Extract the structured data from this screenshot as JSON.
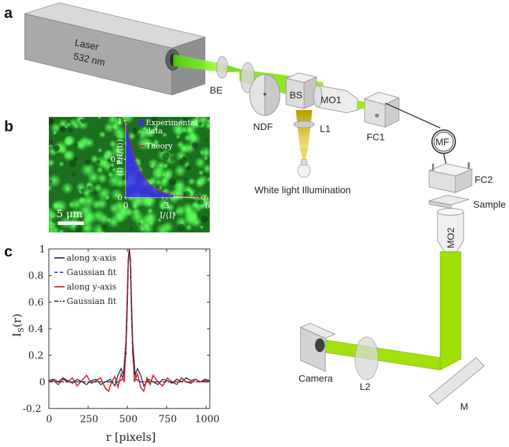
{
  "panels": {
    "a": {
      "label": "a"
    },
    "b": {
      "label": "b"
    },
    "c": {
      "label": "c"
    }
  },
  "setup": {
    "laser_label": "Laser",
    "laser_wavelength": "532 nm",
    "components": {
      "be": "BE",
      "ndf": "NDF",
      "bs": "BS",
      "mo1": "MO1",
      "l1": "L1",
      "fc1": "FC1",
      "mf": "MF",
      "fc2": "FC2",
      "sample": "Sample",
      "mo2": "MO2",
      "camera": "Camera",
      "l2": "L2",
      "m": "M"
    },
    "illumination": "White light Illumination",
    "colors": {
      "beam": "#7fe000",
      "beam_dark": "#4fb800",
      "lamp": "#c9b400"
    }
  },
  "speckle_image": {
    "scalebar_label": "5 μm",
    "scalebar_um": 5,
    "colors": {
      "background": "#1f7a1f",
      "speckle": "#39e639",
      "dark": "#0e3d10"
    }
  },
  "chart_data": [
    {
      "panel": "b-inset",
      "type": "bar",
      "xlabel": "I/⟨I⟩",
      "ylabel": "⟨I⟩ P(I/⟨I⟩)",
      "xlim": [
        0,
        6
      ],
      "ylim": [
        0,
        1
      ],
      "x_ticks": [
        "0",
        "3",
        "6"
      ],
      "y_ticks": [
        "0",
        "0.5",
        "1"
      ],
      "legend": [
        "Experimental data",
        "Theory"
      ],
      "legend_colors": [
        "#3a2cff",
        "#e02020"
      ],
      "series": [
        {
          "name": "Experimental data",
          "kind": "histogram",
          "x": [
            0.05,
            0.15,
            0.25,
            0.35,
            0.45,
            0.55,
            0.65,
            0.75,
            0.85,
            0.95,
            1.05,
            1.15,
            1.25,
            1.35,
            1.45,
            1.55,
            1.65,
            1.75,
            1.85,
            1.95,
            2.05,
            2.15,
            2.25,
            2.35,
            2.45,
            2.55,
            2.65,
            2.75,
            2.85,
            2.95,
            3.05,
            3.15,
            3.25,
            3.35,
            3.45
          ],
          "values": [
            0.95,
            0.86,
            0.78,
            0.71,
            0.64,
            0.58,
            0.52,
            0.47,
            0.43,
            0.39,
            0.35,
            0.32,
            0.29,
            0.26,
            0.23,
            0.21,
            0.19,
            0.17,
            0.16,
            0.14,
            0.13,
            0.12,
            0.1,
            0.09,
            0.09,
            0.08,
            0.07,
            0.06,
            0.06,
            0.05,
            0.05,
            0.04,
            0.04,
            0.03,
            0.03
          ]
        },
        {
          "name": "Theory",
          "kind": "line",
          "x": [
            0,
            0.25,
            0.5,
            0.75,
            1,
            1.25,
            1.5,
            1.75,
            2,
            2.5,
            3,
            3.5,
            4,
            4.5,
            5,
            5.5,
            6
          ],
          "values": [
            1,
            0.78,
            0.61,
            0.47,
            0.37,
            0.29,
            0.22,
            0.17,
            0.14,
            0.08,
            0.05,
            0.03,
            0.02,
            0.01,
            0.01,
            0,
            0
          ]
        }
      ]
    },
    {
      "panel": "c",
      "type": "line",
      "xlabel": "r [pixels]",
      "ylabel": "I_S(r)",
      "xlim": [
        0,
        1024
      ],
      "ylim": [
        -0.2,
        1
      ],
      "x_ticks": [
        "0",
        "250",
        "500",
        "750",
        "1000"
      ],
      "y_ticks": [
        "-0.2",
        "0",
        "0.2",
        "0.4",
        "0.6",
        "0.8",
        "1"
      ],
      "grid": false,
      "legend_position": "top-left",
      "series": [
        {
          "name": "along x-axis",
          "color": "#1b2a4a",
          "style": "solid",
          "x": [
            0,
            30,
            60,
            90,
            120,
            150,
            180,
            210,
            240,
            270,
            300,
            330,
            360,
            390,
            420,
            440,
            460,
            475,
            490,
            500,
            505,
            512,
            519,
            524,
            534,
            549,
            564,
            584,
            604,
            634,
            664,
            694,
            724,
            754,
            784,
            814,
            844,
            874,
            904,
            934,
            964,
            994,
            1024
          ],
          "values": [
            0.01,
            0.02,
            0.0,
            0.03,
            0.01,
            -0.01,
            0.02,
            0.0,
            -0.02,
            0.01,
            0.02,
            -0.02,
            0.0,
            0.02,
            -0.03,
            0.05,
            0.1,
            0.05,
            0.3,
            0.7,
            0.93,
            1.0,
            0.93,
            0.7,
            0.3,
            0.05,
            0.1,
            0.05,
            -0.03,
            0.02,
            0.0,
            -0.02,
            0.02,
            0.01,
            -0.01,
            0.02,
            0.0,
            0.03,
            0.01,
            0.02,
            0.0,
            0.02,
            0.01
          ]
        },
        {
          "name": "Gaussian fit",
          "color": "#2a3cff",
          "style": "dashed",
          "x": [
            0,
            440,
            470,
            490,
            500,
            506,
            512,
            518,
            524,
            534,
            554,
            584,
            1024
          ],
          "values": [
            0.0,
            0.0,
            0.02,
            0.2,
            0.62,
            0.9,
            1.0,
            0.9,
            0.62,
            0.2,
            0.02,
            0.0,
            0.0
          ]
        },
        {
          "name": "along y-axis",
          "color": "#dd1b1b",
          "style": "solid",
          "x": [
            0,
            30,
            60,
            90,
            120,
            150,
            180,
            210,
            240,
            270,
            300,
            330,
            360,
            380,
            400,
            420,
            440,
            460,
            480,
            495,
            505,
            512,
            519,
            529,
            544,
            564,
            584,
            604,
            624,
            644,
            664,
            694,
            724,
            754,
            784,
            814,
            844,
            874,
            904,
            934,
            964,
            994,
            1024
          ],
          "values": [
            0.0,
            0.01,
            -0.02,
            0.02,
            0.0,
            0.03,
            -0.03,
            0.01,
            0.05,
            -0.01,
            0.01,
            0.03,
            -0.05,
            -0.07,
            0.0,
            0.04,
            -0.04,
            0.06,
            0.0,
            0.4,
            0.9,
            1.0,
            0.9,
            0.4,
            0.0,
            0.06,
            -0.04,
            -0.07,
            0.03,
            -0.02,
            0.05,
            0.0,
            -0.03,
            0.03,
            0.0,
            -0.02,
            0.03,
            0.0,
            -0.01,
            0.02,
            0.0,
            0.01,
            0.0
          ]
        },
        {
          "name": "Gaussian fit",
          "color": "#333333",
          "style": "dashdot",
          "x": [
            0,
            440,
            470,
            490,
            500,
            506,
            512,
            518,
            524,
            534,
            554,
            584,
            1024
          ],
          "values": [
            0.0,
            0.0,
            0.02,
            0.2,
            0.62,
            0.9,
            1.0,
            0.9,
            0.62,
            0.2,
            0.02,
            0.0,
            0.0
          ]
        }
      ]
    }
  ]
}
